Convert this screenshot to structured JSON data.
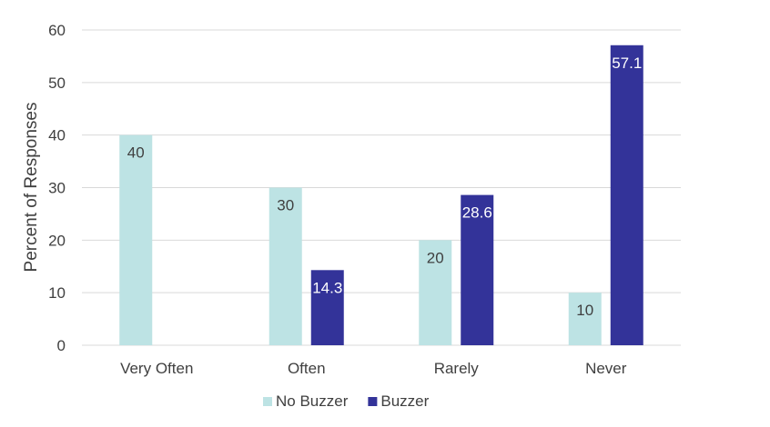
{
  "chart_data": {
    "type": "bar",
    "categories": [
      "Very Often",
      "Often",
      "Rarely",
      "Never"
    ],
    "series": [
      {
        "name": "No Buzzer",
        "values": [
          40,
          30,
          20,
          10
        ],
        "color": "#bde3e4",
        "label_color": "#404040",
        "labels": [
          "40",
          "30",
          "20",
          "10"
        ]
      },
      {
        "name": "Buzzer",
        "values": [
          null,
          14.3,
          28.6,
          57.1
        ],
        "color": "#333399",
        "label_color": "#ffffff",
        "labels": [
          "",
          "14.3",
          "28.6",
          "57.1"
        ]
      }
    ],
    "title": "",
    "xlabel": "",
    "ylabel": "Percent of Responses",
    "ylim": [
      0,
      60
    ],
    "yticks": [
      0,
      10,
      20,
      30,
      40,
      50,
      60
    ],
    "grid": true,
    "gridline_color": "#d9d9d9",
    "legend_position": "bottom"
  }
}
